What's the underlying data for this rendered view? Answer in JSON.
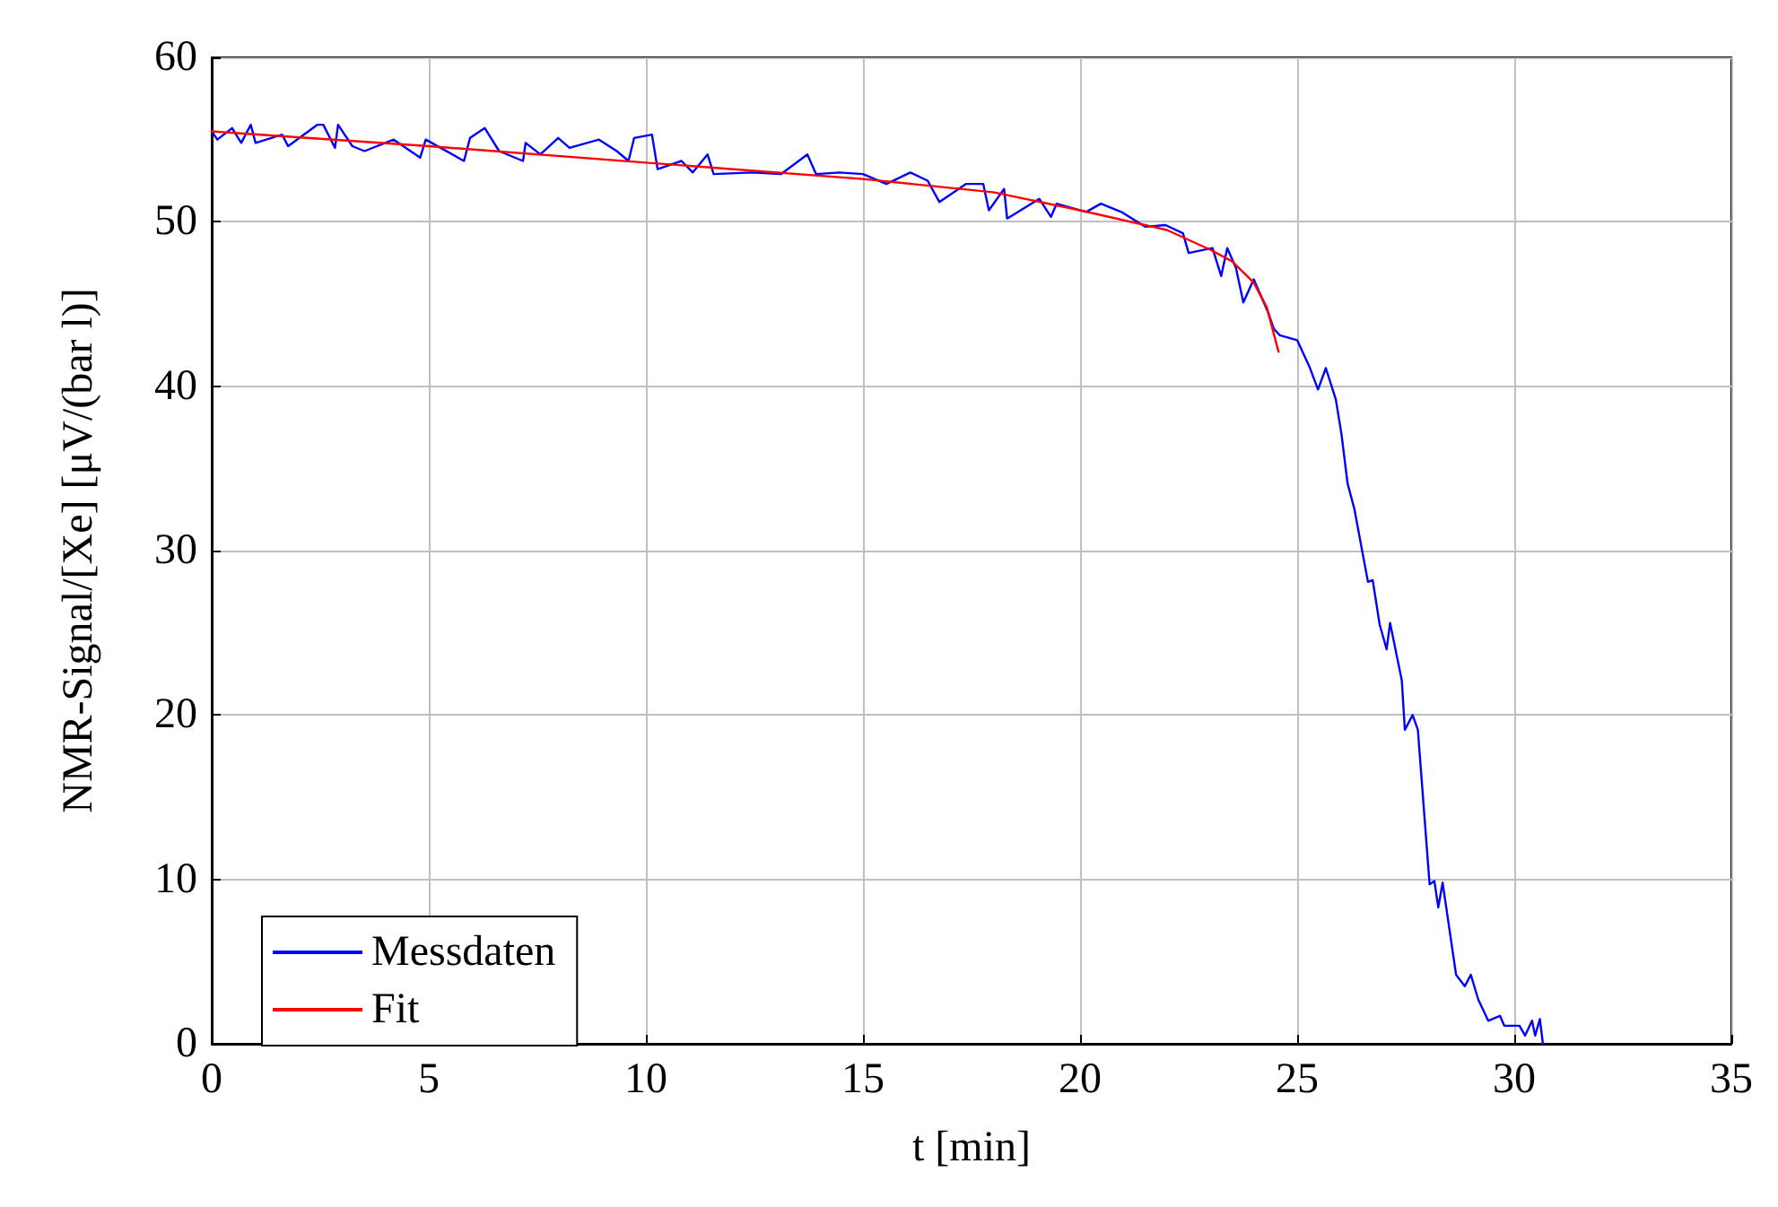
{
  "chart_data": {
    "type": "line",
    "xlabel": "t [min]",
    "ylabel": "NMR-Signal/[Xe] [μV/(bar l)]",
    "xlim": [
      0,
      35
    ],
    "ylim": [
      0,
      60
    ],
    "xticks": [
      0,
      5,
      10,
      15,
      20,
      25,
      30,
      35
    ],
    "yticks": [
      0,
      10,
      20,
      30,
      40,
      50,
      60
    ],
    "grid": true,
    "legend": "bottom left",
    "marker": "none",
    "line_style": "solid",
    "series": [
      {
        "name": "Messdaten",
        "color": "#0000ff",
        "x": [
          0,
          0.13,
          0.47,
          0.68,
          0.9,
          1.01,
          1.62,
          1.76,
          2.43,
          2.57,
          2.84,
          2.91,
          3.24,
          3.52,
          4.19,
          4.8,
          4.93,
          5.81,
          5.95,
          6.29,
          6.62,
          7.17,
          7.23,
          7.57,
          7.98,
          8.24,
          8.92,
          9.33,
          9.6,
          9.73,
          10.14,
          10.27,
          10.82,
          11.08,
          11.42,
          11.56,
          12.44,
          13.11,
          13.72,
          13.92,
          14.46,
          15.0,
          15.54,
          16.09,
          16.49,
          16.76,
          17.37,
          17.77,
          17.9,
          18.25,
          18.32,
          19.06,
          19.33,
          19.46,
          20.14,
          20.48,
          20.95,
          21.5,
          21.97,
          22.37,
          22.5,
          23.05,
          23.25,
          23.39,
          23.59,
          23.76,
          24.0,
          24.33,
          24.46,
          24.6,
          25.0,
          25.28,
          25.48,
          25.66,
          25.89,
          26.02,
          26.16,
          26.32,
          26.63,
          26.74,
          26.9,
          27.06,
          27.14,
          27.41,
          27.48,
          27.66,
          27.78,
          28.05,
          28.16,
          28.25,
          28.35,
          28.66,
          28.86,
          29.0,
          29.17,
          29.4,
          29.67,
          29.77,
          30.12,
          30.25,
          30.41,
          30.48,
          30.59,
          30.66
        ],
        "values": [
          55.5,
          55.0,
          55.7,
          54.8,
          55.9,
          54.8,
          55.3,
          54.6,
          55.9,
          55.9,
          54.5,
          55.9,
          54.6,
          54.3,
          55.0,
          53.9,
          55.0,
          53.7,
          55.1,
          55.7,
          54.3,
          53.7,
          54.8,
          54.1,
          55.1,
          54.5,
          55.0,
          54.3,
          53.7,
          55.1,
          55.3,
          53.2,
          53.7,
          53.0,
          54.1,
          52.9,
          53.0,
          52.9,
          54.1,
          52.9,
          53.0,
          52.9,
          52.3,
          53.0,
          52.5,
          51.2,
          52.3,
          52.3,
          50.7,
          52.0,
          50.2,
          51.4,
          50.3,
          51.1,
          50.6,
          51.1,
          50.6,
          49.7,
          49.8,
          49.3,
          48.1,
          48.4,
          46.7,
          48.4,
          47.2,
          45.1,
          46.5,
          44.5,
          43.5,
          43.1,
          42.8,
          41.2,
          39.8,
          41.1,
          39.2,
          37.1,
          34.1,
          32.5,
          28.1,
          28.2,
          25.5,
          24.0,
          25.6,
          22.1,
          19.1,
          20.0,
          19.1,
          9.7,
          9.9,
          8.3,
          9.8,
          4.2,
          3.5,
          4.2,
          2.7,
          1.4,
          1.7,
          1.1,
          1.1,
          0.5,
          1.4,
          0.5,
          1.5,
          0.0
        ]
      },
      {
        "name": "Fit",
        "color": "#ff0000",
        "x": [
          0,
          5,
          10,
          15,
          18,
          20,
          22,
          23,
          23.5,
          24,
          24.3,
          24.57
        ],
        "values": [
          55.5,
          54.6,
          53.6,
          52.6,
          51.8,
          50.7,
          49.5,
          48.3,
          47.6,
          46.3,
          44.8,
          42.1
        ]
      }
    ]
  }
}
